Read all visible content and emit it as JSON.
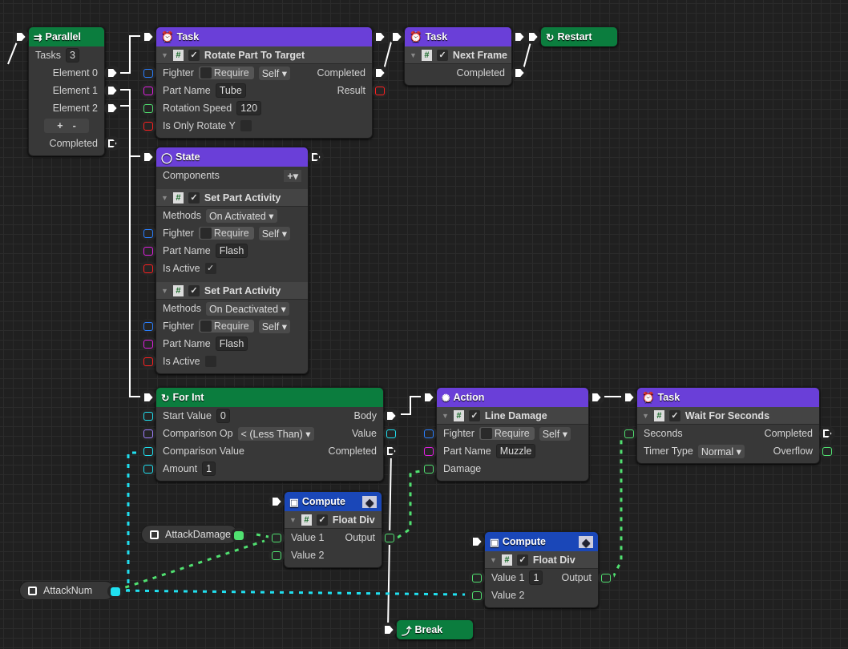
{
  "colors": {
    "flow": "#0b7d3e",
    "task": "#6a3fd8",
    "compute": "#1a47b8",
    "edge": "#ffffff",
    "int_edge": "#20e0f0",
    "float_edge": "#50e070"
  },
  "nodes": [
    {
      "id": "parallel",
      "title": "Parallel",
      "icon": "⇉",
      "kind": "flow",
      "rows": [
        {
          "label": "Tasks",
          "field": "3"
        },
        {
          "label": "Element 0",
          "out": "flow"
        },
        {
          "label": "Element 1",
          "out": "flow"
        },
        {
          "label": "Element 2",
          "out": "flow"
        },
        {
          "buttons": [
            "+",
            "-"
          ]
        },
        {
          "label": "Completed",
          "out": "flowo"
        }
      ]
    },
    {
      "id": "task1",
      "title": "Task",
      "icon": "⏰",
      "kind": "task",
      "sub": "Rotate Part To Target",
      "rows": [
        {
          "label": "Fighter",
          "req": "Require",
          "dd": "Self",
          "in": "#2a7fff",
          "outlabel": "Completed",
          "out": "flow"
        },
        {
          "label": "Part Name",
          "field": "Tube",
          "in": "#e020e0",
          "outlabel": "Result",
          "out": "#ff2020"
        },
        {
          "label": "Rotation Speed",
          "field": "120",
          "in": "#50e070"
        },
        {
          "label": "Is Only Rotate Y",
          "chk": "",
          "in": "#ff2020"
        }
      ]
    },
    {
      "id": "task2",
      "title": "Task",
      "icon": "⏰",
      "kind": "task",
      "sub": "Next Frame",
      "rows": [
        {
          "outlabel": "Completed",
          "out": "flow"
        }
      ]
    },
    {
      "id": "restart",
      "title": "Restart",
      "icon": "↻",
      "kind": "flow",
      "rows": []
    },
    {
      "id": "state",
      "title": "State",
      "icon": "◯",
      "kind": "task",
      "rows": [
        {
          "label": "Components",
          "plus": "+▾"
        }
      ],
      "subs": [
        {
          "sub": "Set Part Activity",
          "rows": [
            {
              "label": "Methods",
              "dd": "On Activated"
            },
            {
              "label": "Fighter",
              "req": "Require",
              "dd": "Self",
              "in": "#2a7fff"
            },
            {
              "label": "Part Name",
              "field": "Flash",
              "in": "#e020e0"
            },
            {
              "label": "Is Active",
              "chk": "✓",
              "in": "#ff2020"
            }
          ]
        },
        {
          "sub": "Set Part Activity",
          "rows": [
            {
              "label": "Methods",
              "dd": "On Deactivated"
            },
            {
              "label": "Fighter",
              "req": "Require",
              "dd": "Self",
              "in": "#2a7fff"
            },
            {
              "label": "Part Name",
              "field": "Flash",
              "in": "#e020e0"
            },
            {
              "label": "Is Active",
              "chk": "",
              "in": "#ff2020"
            }
          ]
        }
      ]
    },
    {
      "id": "forint",
      "title": "For Int",
      "icon": "↻",
      "kind": "flow",
      "rows": [
        {
          "label": "Start Value",
          "field": "0",
          "in": "#20e0f0",
          "outlabel": "Body",
          "out": "flow"
        },
        {
          "label": "Comparison Op",
          "dd": "< (Less Than)",
          "in": "#a080ff",
          "outlabel": "Value",
          "out": "#20e0f0"
        },
        {
          "label": "Comparison Value",
          "in": "#20e0f0",
          "outlabel": "Completed",
          "out": "flowo"
        },
        {
          "label": "Amount",
          "field": "1",
          "in": "#20e0f0"
        }
      ]
    },
    {
      "id": "action",
      "title": "Action",
      "icon": "✺",
      "kind": "task",
      "sub": "Line Damage",
      "rows": [
        {
          "label": "Fighter",
          "req": "Require",
          "dd": "Self",
          "in": "#2a7fff"
        },
        {
          "label": "Part Name",
          "field": "Muzzle",
          "in": "#e020e0"
        },
        {
          "label": "Damage",
          "in": "#50e070"
        }
      ]
    },
    {
      "id": "task3",
      "title": "Task",
      "icon": "⏰",
      "kind": "task",
      "sub": "Wait For Seconds",
      "rows": [
        {
          "label": "Seconds",
          "in": "#50e070",
          "outlabel": "Completed",
          "out": "flowo"
        },
        {
          "label": "Timer Type",
          "dd": "Normal",
          "outlabel": "Overflow",
          "out": "#50e070"
        }
      ]
    },
    {
      "id": "compute1",
      "title": "Compute",
      "icon": "▣",
      "kind": "compute",
      "sub": "Float Div",
      "rows": [
        {
          "label": "Value 1",
          "in": "#50e070",
          "outlabel": "Output",
          "out": "#50e070"
        },
        {
          "label": "Value 2",
          "in": "#50e070"
        }
      ]
    },
    {
      "id": "compute2",
      "title": "Compute",
      "icon": "▣",
      "kind": "compute",
      "sub": "Float Div",
      "rows": [
        {
          "label": "Value 1",
          "field": "1",
          "in": "#50e070",
          "outlabel": "Output",
          "out": "#50e070"
        },
        {
          "label": "Value 2",
          "in": "#50e070"
        }
      ]
    },
    {
      "id": "break",
      "title": "Break",
      "icon": "⤴",
      "kind": "flow",
      "rows": []
    }
  ],
  "variables": [
    {
      "id": "attackdamage",
      "label": "AttackDamage",
      "port": "#50e070"
    },
    {
      "id": "attacknum",
      "label": "AttackNum",
      "port": "#20e0f0"
    }
  ]
}
